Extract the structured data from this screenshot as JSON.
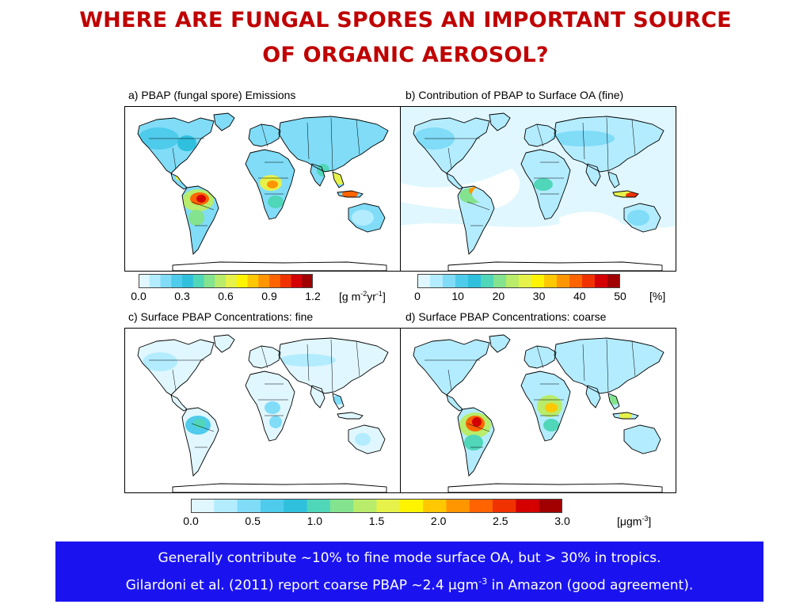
{
  "slide": {
    "title_line1": "WHERE ARE FUNGAL SPORES AN IMPORTANT SOURCE",
    "title_line2": "OF ORGANIC AEROSOL?"
  },
  "panels": {
    "a": {
      "title": "a) PBAP (fungal spore) Emissions"
    },
    "b": {
      "title": "b) Contribution of PBAP to Surface OA (fine)"
    },
    "c": {
      "title": "c) Surface PBAP Concentrations: fine"
    },
    "d": {
      "title": "d) Surface PBAP Concentrations: coarse"
    }
  },
  "colorbars": {
    "emissions": {
      "ticks": [
        "0.0",
        "0.3",
        "0.6",
        "0.9",
        "1.2"
      ],
      "unit_prefix": "[g m",
      "unit_exp1": "-2",
      "unit_mid": "yr",
      "unit_exp2": "-1",
      "unit_suffix": "]"
    },
    "contribution": {
      "ticks": [
        "0",
        "10",
        "20",
        "30",
        "40",
        "50"
      ],
      "unit": "[%]"
    },
    "concentration": {
      "ticks": [
        "0.0",
        "0.5",
        "1.0",
        "1.5",
        "2.0",
        "2.5",
        "3.0"
      ],
      "unit_prefix": "[μgm",
      "unit_exp": "-3",
      "unit_suffix": "]"
    }
  },
  "colors": {
    "scale": [
      "#ffffff",
      "#e0f7ff",
      "#b3ecff",
      "#80dcf7",
      "#4fcbeb",
      "#2fc0dd",
      "#50d6b9",
      "#84e38e",
      "#b8ec6a",
      "#e6f24a",
      "#fff400",
      "#ffc800",
      "#ff9600",
      "#ff6400",
      "#f03200",
      "#d40000",
      "#a00000"
    ],
    "title_red": "#c00000",
    "callout_blue": "#1a13f0"
  },
  "callout": {
    "line1": "Generally contribute ~10% to fine mode surface OA, but > 30% in tropics.",
    "line2_a": "Gilardoni et al. (2011) report coarse PBAP ~2.4 μgm",
    "line2_exp": "-3",
    "line2_b": " in Amazon (good agreement)."
  }
}
